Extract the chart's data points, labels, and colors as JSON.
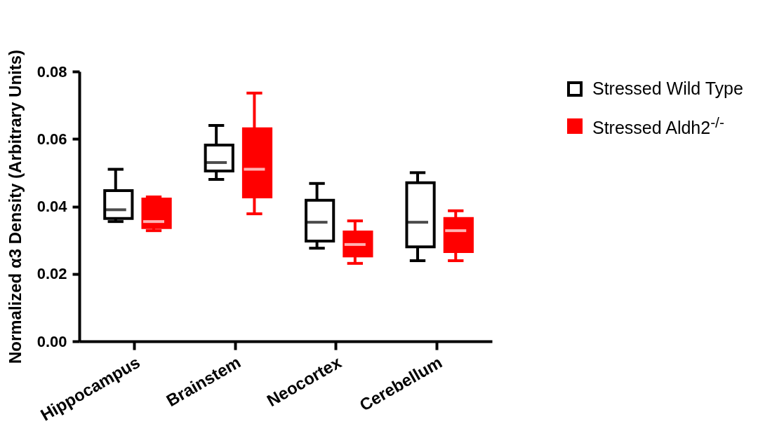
{
  "chart_data": {
    "type": "box",
    "ylabel": "Normalized α3 Density (Arbitrary Units)",
    "categories": [
      "Hippocampus",
      "Brainstem",
      "Neocortex",
      "Cerebellum"
    ],
    "ylim": [
      0,
      0.08
    ],
    "yticks": [
      {
        "value": 0,
        "label": "0.00"
      },
      {
        "value": 0.02,
        "label": "0.02"
      },
      {
        "value": 0.04,
        "label": "0.04"
      },
      {
        "value": 0.06,
        "label": "0.06"
      },
      {
        "value": 0.08,
        "label": "0.08"
      }
    ],
    "grid": false,
    "legend": "right",
    "series": [
      {
        "name": "Stressed Wild Type",
        "color": "#000000",
        "boxes": [
          {
            "low": 0.0355,
            "q1": 0.0364,
            "median": 0.039,
            "q3": 0.0447,
            "high": 0.051
          },
          {
            "low": 0.048,
            "q1": 0.0505,
            "median": 0.053,
            "q3": 0.0582,
            "high": 0.064
          },
          {
            "low": 0.0276,
            "q1": 0.0297,
            "median": 0.0353,
            "q3": 0.0418,
            "high": 0.0468
          },
          {
            "low": 0.0239,
            "q1": 0.028,
            "median": 0.0353,
            "q3": 0.047,
            "high": 0.05
          }
        ]
      },
      {
        "name": "Stressed Aldh2$^{-/-}$",
        "color": "#ff0000",
        "boxes": [
          {
            "low": 0.0328,
            "q1": 0.0337,
            "median": 0.0355,
            "q3": 0.0422,
            "high": 0.0428
          },
          {
            "low": 0.0378,
            "q1": 0.0428,
            "median": 0.051,
            "q3": 0.063,
            "high": 0.0736
          },
          {
            "low": 0.0231,
            "q1": 0.0253,
            "median": 0.0287,
            "q3": 0.0324,
            "high": 0.0357
          },
          {
            "low": 0.0239,
            "q1": 0.0266,
            "median": 0.0328,
            "q3": 0.0364,
            "high": 0.0387
          }
        ]
      }
    ]
  }
}
